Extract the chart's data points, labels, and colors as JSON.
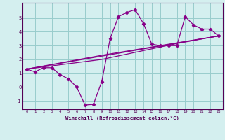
{
  "title": "",
  "xlabel": "Windchill (Refroidissement éolien,°C)",
  "ylabel": "",
  "background_color": "#d4efef",
  "line_color": "#880088",
  "grid_color": "#99cccc",
  "xlim": [
    -0.5,
    23.5
  ],
  "ylim": [
    -1.6,
    6.1
  ],
  "xticks": [
    0,
    1,
    2,
    3,
    4,
    5,
    6,
    7,
    8,
    9,
    10,
    11,
    12,
    13,
    14,
    15,
    16,
    17,
    18,
    19,
    20,
    21,
    22,
    23
  ],
  "yticks": [
    -1,
    0,
    1,
    2,
    3,
    4,
    5
  ],
  "line1_x": [
    0,
    1,
    2,
    3,
    4,
    5,
    6,
    7,
    8,
    9,
    10,
    11,
    12,
    13,
    14,
    15,
    16,
    17,
    18,
    19,
    20,
    21,
    22,
    23
  ],
  "line1_y": [
    1.3,
    1.1,
    1.4,
    1.4,
    0.9,
    0.6,
    0.0,
    -1.3,
    -1.25,
    0.4,
    3.5,
    5.1,
    5.4,
    5.6,
    4.6,
    3.1,
    3.0,
    3.0,
    3.0,
    5.1,
    4.5,
    4.2,
    4.2,
    3.7
  ],
  "line2_x": [
    0,
    23
  ],
  "line2_y": [
    1.3,
    3.7
  ],
  "line3_x": [
    0,
    23
  ],
  "line3_y": [
    1.3,
    3.7
  ],
  "line4_x": [
    0,
    9,
    23
  ],
  "line4_y": [
    1.3,
    2.3,
    3.7
  ],
  "line5_x": [
    0,
    9,
    18,
    23
  ],
  "line5_y": [
    1.3,
    2.0,
    3.15,
    3.7
  ]
}
